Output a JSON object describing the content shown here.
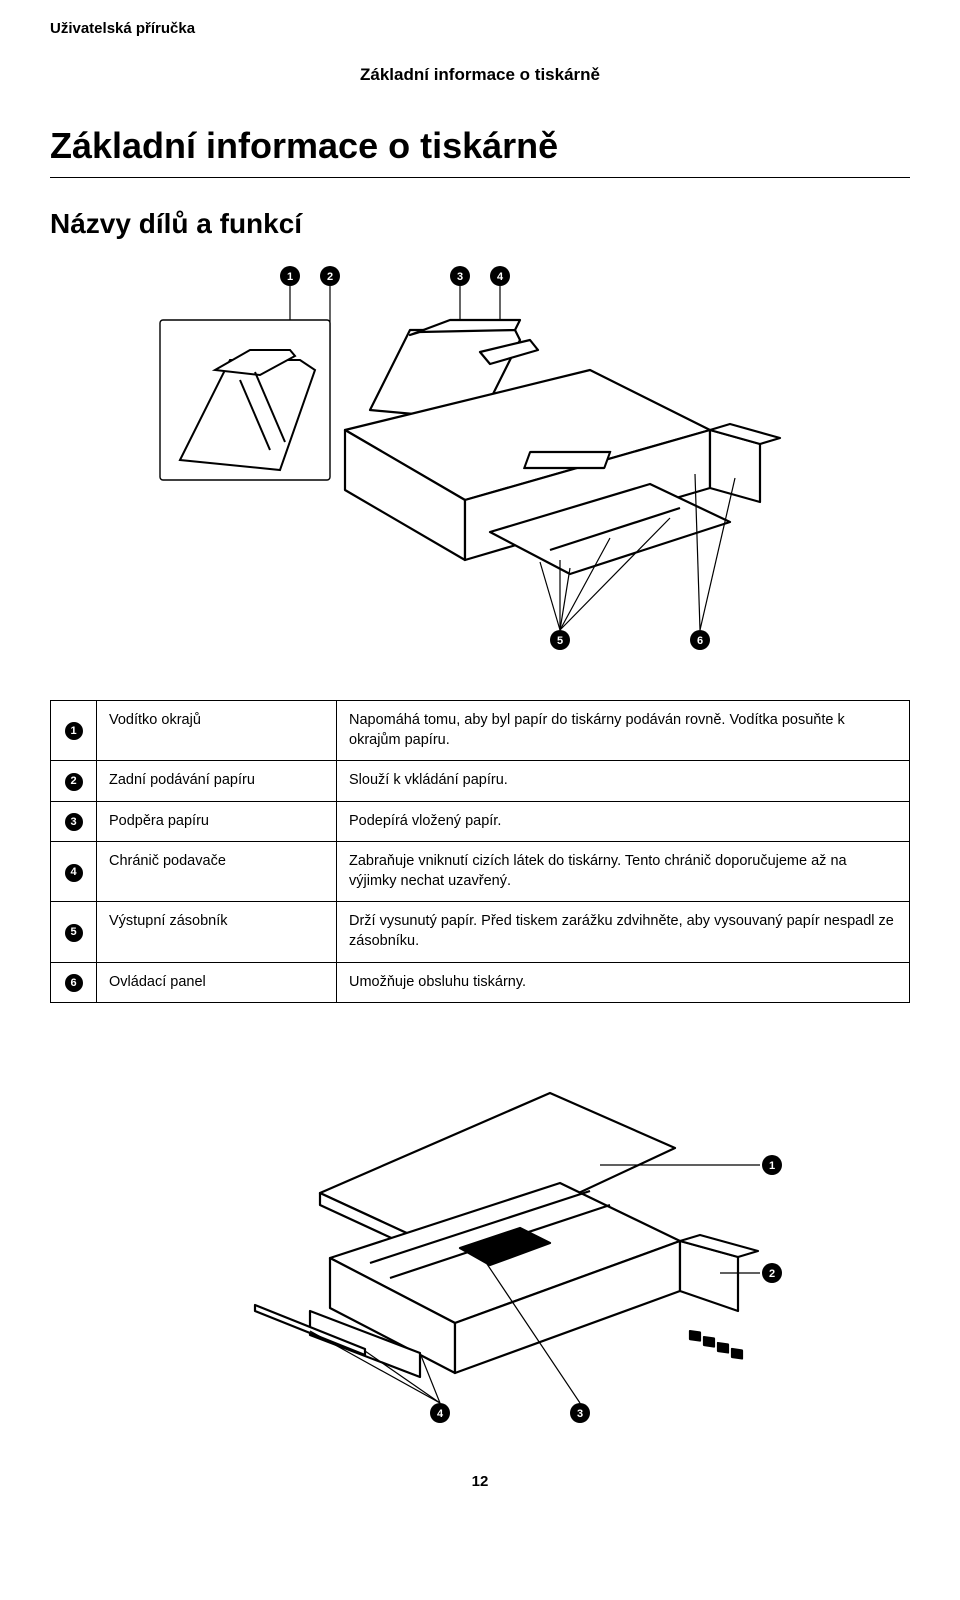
{
  "doc_header": "Uživatelská příručka",
  "section_header_small": "Základní informace o tiskárně",
  "main_title": "Základní informace o tiskárně",
  "section_title": "Názvy dílů a funkcí",
  "callouts_top": [
    "1",
    "2",
    "3",
    "4",
    "5",
    "6"
  ],
  "callouts_bottom": [
    "1",
    "2",
    "3",
    "4"
  ],
  "table_rows": [
    {
      "num": "1",
      "name": "Vodítko okrajů",
      "desc": "Napomáhá tomu, aby byl papír do tiskárny podáván rovně. Vodítka posuňte k okrajům papíru."
    },
    {
      "num": "2",
      "name": "Zadní podávání papíru",
      "desc": "Slouží k vkládání papíru."
    },
    {
      "num": "3",
      "name": "Podpěra papíru",
      "desc": "Podepírá vložený papír."
    },
    {
      "num": "4",
      "name": "Chránič podavače",
      "desc": "Zabraňuje vniknutí cizích látek do tiskárny. Tento chránič doporučujeme až na výjimky nechat uzavřený."
    },
    {
      "num": "5",
      "name": "Výstupní zásobník",
      "desc": "Drží vysunutý papír. Před tiskem zarážku zdvihněte, aby vysouvaný papír nespadl ze zásobníku."
    },
    {
      "num": "6",
      "name": "Ovládací panel",
      "desc": "Umožňuje obsluhu tiskárny."
    }
  ],
  "page_number": "12",
  "colors": {
    "text": "#000000",
    "bg": "#ffffff",
    "line": "#000000",
    "badge_bg": "#000000",
    "badge_fg": "#ffffff"
  }
}
